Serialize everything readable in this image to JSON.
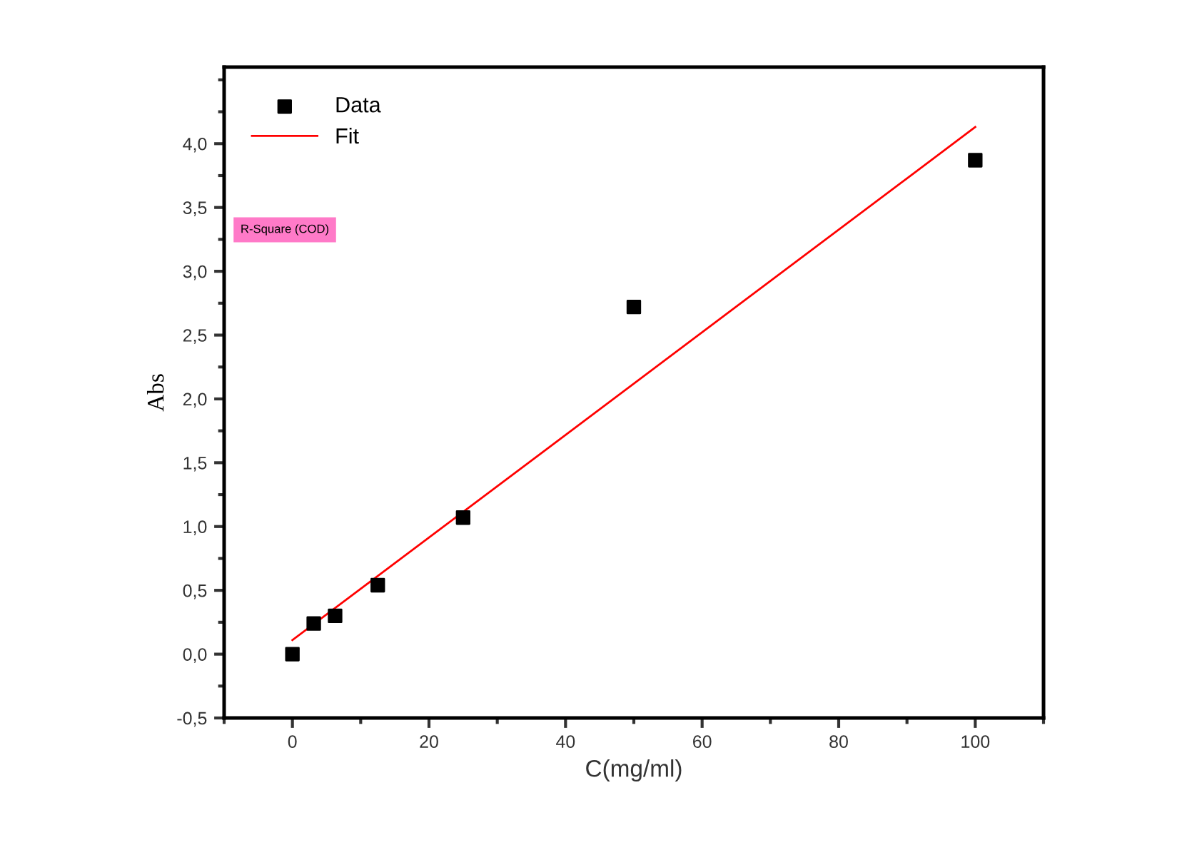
{
  "chart_data": {
    "type": "scatter",
    "xlabel": "C(mg/ml)",
    "ylabel": "Abs",
    "xlim": [
      -10,
      110
    ],
    "xticks": [
      0,
      20,
      40,
      60,
      80,
      100
    ],
    "ylim": [
      -0.5,
      4.6
    ],
    "yticks": [
      {
        "value": -0.5,
        "label": "-0,5"
      },
      {
        "value": 0,
        "label": "0,0"
      },
      {
        "value": 0.5,
        "label": "0,5"
      },
      {
        "value": 1,
        "label": "1,0"
      },
      {
        "value": 1.5,
        "label": "1,5"
      },
      {
        "value": 2,
        "label": "2,0"
      },
      {
        "value": 2.5,
        "label": "2,5"
      },
      {
        "value": 3,
        "label": "3,0"
      },
      {
        "value": 3.5,
        "label": "3,5"
      },
      {
        "value": 4,
        "label": "4,0"
      }
    ],
    "grid": false,
    "legend": "top left",
    "annotations": [
      "R-Square (COD)"
    ],
    "series": [
      {
        "name": "Data",
        "marker": "square",
        "color": "#000000",
        "x": [
          0,
          3.125,
          6.25,
          12.5,
          25,
          50,
          100
        ],
        "values": [
          0.0,
          0.24,
          0.3,
          0.54,
          1.07,
          2.72,
          3.87
        ]
      },
      {
        "name": "Fit",
        "type": "line",
        "marker": "none",
        "color": "#ff0000",
        "line_style": "solid",
        "x": [
          0,
          100
        ],
        "values": [
          0.11,
          4.13
        ]
      }
    ]
  }
}
